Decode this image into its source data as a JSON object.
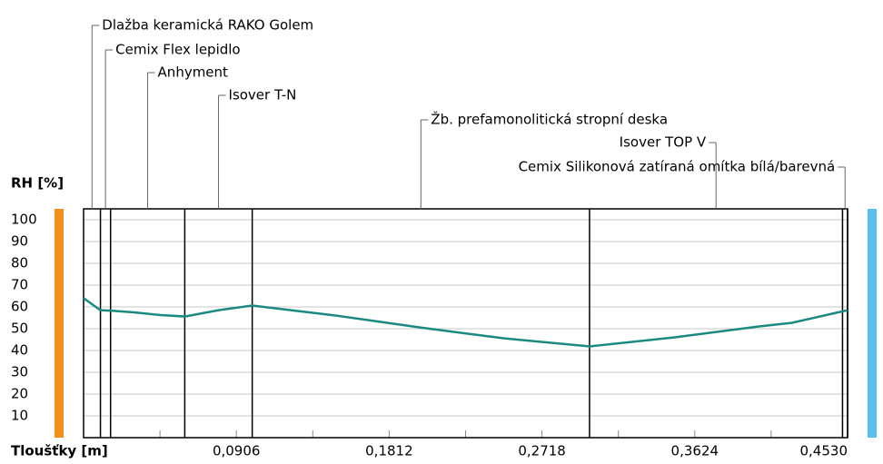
{
  "chart_data": {
    "type": "line",
    "ylabel": "RH [%]",
    "xlabel": "Tloušťky [m]",
    "xlim": [
      0,
      0.453
    ],
    "ylim": [
      0,
      105
    ],
    "yticks": [
      10,
      20,
      30,
      40,
      50,
      60,
      70,
      80,
      90,
      100
    ],
    "xticks": [
      {
        "value": 0.0906,
        "label": "0,0906"
      },
      {
        "value": 0.1812,
        "label": "0,1812"
      },
      {
        "value": 0.2718,
        "label": "0,2718"
      },
      {
        "value": 0.3624,
        "label": "0,3624"
      },
      {
        "value": 0.453,
        "label": "0,4530"
      }
    ],
    "grid": true,
    "layers": [
      {
        "name": "Dlažba keramická RAKO Golem",
        "x_end": 0.01
      },
      {
        "name": "Cemix Flex lepidlo",
        "x_end": 0.016
      },
      {
        "name": "Anhyment",
        "x_end": 0.06
      },
      {
        "name": "Isover T-N",
        "x_end": 0.1
      },
      {
        "name": "Žb. prefamonolitická stropní deska",
        "x_end": 0.3
      },
      {
        "name": "Isover TOP V",
        "x_end": 0.45
      },
      {
        "name": "Cemix Silikonová zatíraná omítka bílá/barevná",
        "x_end": 0.453
      }
    ],
    "series": [
      {
        "name": "RH",
        "color": "#1a8a80",
        "x": [
          0,
          0.01,
          0.016,
          0.03,
          0.045,
          0.06,
          0.08,
          0.1,
          0.15,
          0.2,
          0.25,
          0.3,
          0.35,
          0.4,
          0.42,
          0.453
        ],
        "values": [
          64,
          58.5,
          58.3,
          57.5,
          56.3,
          55.6,
          58.5,
          60.6,
          56,
          50.5,
          45.5,
          41.9,
          46,
          51,
          52.7,
          58.5
        ]
      }
    ]
  }
}
